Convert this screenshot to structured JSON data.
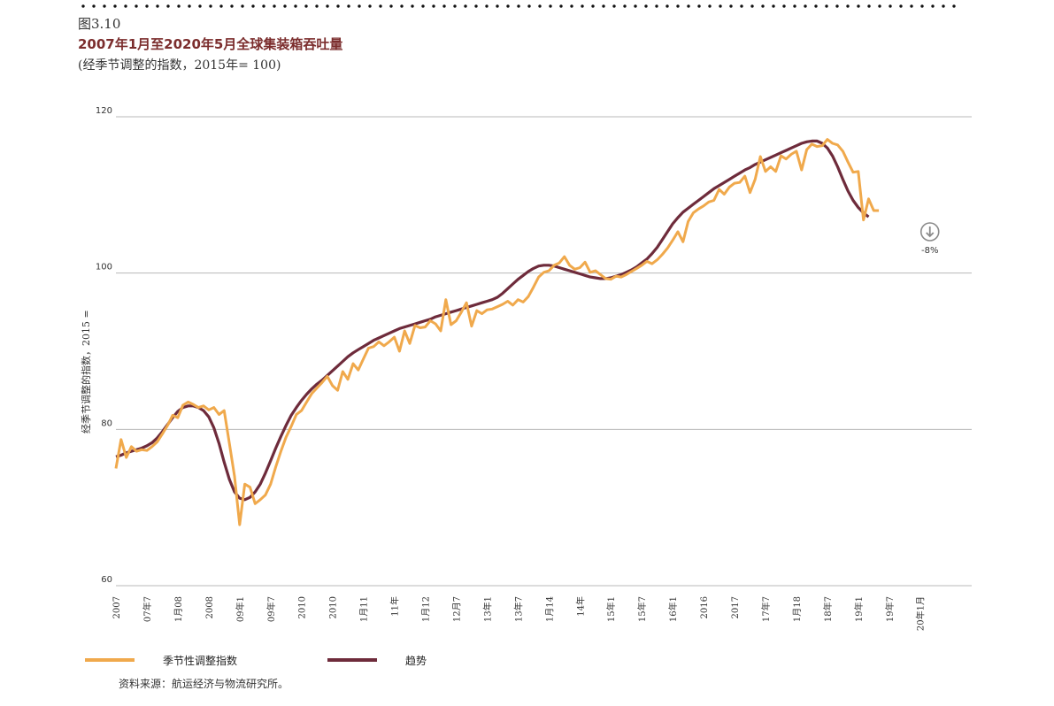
{
  "figure_label": "图3.10",
  "title": "2007年1月至2020年5月全球集装箱吞吐量",
  "subtitle": "(经季节调整的指数，2015年= 100)",
  "source": "资料来源：航运经济与物流研究所。",
  "colors": {
    "sa": "#f0a94c",
    "trend": "#6e2b3b",
    "grid": "#b8b8b8",
    "marker": "#8a8a8a"
  },
  "chart_data": {
    "type": "line",
    "ylabel": "经季节调整的指数，2015 =",
    "ylim": [
      60,
      120
    ],
    "yticks": [
      60,
      80,
      100,
      120
    ],
    "xlim": [
      0,
      166
    ],
    "x_start": "2007-01",
    "x_tick_labels": [
      {
        "label": "2007",
        "x": 0
      },
      {
        "label": "07年7",
        "x": 6
      },
      {
        "label": "1月08",
        "x": 12
      },
      {
        "label": "2008",
        "x": 18
      },
      {
        "label": "09年1",
        "x": 24
      },
      {
        "label": "09年7",
        "x": 30
      },
      {
        "label": "2010",
        "x": 36
      },
      {
        "label": "2010",
        "x": 42
      },
      {
        "label": "1月11",
        "x": 48
      },
      {
        "label": "11年",
        "x": 54
      },
      {
        "label": "1月12",
        "x": 60
      },
      {
        "label": "12月7",
        "x": 66
      },
      {
        "label": "13年1",
        "x": 72
      },
      {
        "label": "13年7",
        "x": 78
      },
      {
        "label": "1月14",
        "x": 84
      },
      {
        "label": "14年",
        "x": 90
      },
      {
        "label": "15年1",
        "x": 96
      },
      {
        "label": "15年7",
        "x": 102
      },
      {
        "label": "16年1",
        "x": 108
      },
      {
        "label": "2016",
        "x": 114
      },
      {
        "label": "2017",
        "x": 120
      },
      {
        "label": "17年7",
        "x": 126
      },
      {
        "label": "1月18",
        "x": 132
      },
      {
        "label": "18年7",
        "x": 138
      },
      {
        "label": "19年1",
        "x": 144
      },
      {
        "label": "19年7",
        "x": 150
      },
      {
        "label": "20年1月",
        "x": 156
      }
    ],
    "series": [
      {
        "name": "季节性调整指数",
        "color": "#f0a94c",
        "values": [
          75.0,
          78.7,
          76.4,
          77.8,
          77.2,
          77.4,
          77.3,
          77.8,
          78.4,
          79.4,
          80.5,
          81.8,
          81.5,
          83.1,
          83.5,
          83.2,
          82.8,
          83.0,
          82.5,
          82.8,
          81.9,
          82.4,
          78.2,
          74.0,
          67.8,
          73.0,
          72.6,
          70.5,
          71.0,
          71.6,
          73.0,
          75.2,
          77.2,
          79.0,
          80.4,
          81.9,
          82.4,
          83.5,
          84.6,
          85.3,
          86.0,
          86.8,
          85.6,
          85.0,
          87.4,
          86.4,
          88.4,
          87.6,
          89.0,
          90.4,
          90.6,
          91.2,
          90.7,
          91.2,
          91.8,
          90.0,
          92.6,
          91.0,
          93.3,
          93.0,
          93.1,
          93.9,
          93.5,
          92.6,
          96.6,
          93.4,
          93.9,
          95.0,
          96.2,
          93.2,
          95.2,
          94.8,
          95.3,
          95.4,
          95.7,
          96.0,
          96.4,
          95.9,
          96.6,
          96.3,
          97.0,
          98.2,
          99.5,
          100.1,
          100.3,
          101.0,
          101.3,
          102.1,
          101.0,
          100.5,
          100.7,
          101.4,
          100.1,
          100.3,
          99.8,
          99.3,
          99.2,
          99.6,
          99.5,
          99.8,
          100.2,
          100.6,
          101.0,
          101.5,
          101.2,
          101.7,
          102.4,
          103.2,
          104.2,
          105.3,
          104.0,
          106.6,
          107.7,
          108.2,
          108.6,
          109.1,
          109.3,
          110.7,
          110.1,
          111.0,
          111.5,
          111.6,
          112.4,
          110.3,
          112.0,
          114.9,
          113.0,
          113.6,
          113.0,
          115.0,
          114.6,
          115.2,
          115.6,
          113.2,
          115.8,
          116.5,
          116.2,
          116.3,
          117.1,
          116.6,
          116.4,
          115.6,
          114.2,
          112.9,
          113.0,
          106.8,
          109.5,
          108.0,
          108.0
        ]
      },
      {
        "name": "趋势",
        "color": "#6e2b3b",
        "values": [
          76.5,
          76.7,
          77.0,
          77.2,
          77.4,
          77.6,
          77.9,
          78.3,
          78.9,
          79.7,
          80.6,
          81.5,
          82.3,
          82.8,
          83.0,
          83.0,
          82.8,
          82.4,
          81.6,
          80.2,
          78.2,
          75.8,
          73.6,
          72.0,
          71.2,
          71.0,
          71.3,
          72.0,
          73.0,
          74.4,
          76.0,
          77.6,
          79.1,
          80.5,
          81.8,
          82.8,
          83.7,
          84.5,
          85.2,
          85.8,
          86.3,
          86.9,
          87.5,
          88.1,
          88.7,
          89.3,
          89.8,
          90.2,
          90.6,
          91.0,
          91.4,
          91.7,
          92.0,
          92.3,
          92.6,
          92.9,
          93.1,
          93.3,
          93.5,
          93.7,
          93.9,
          94.1,
          94.4,
          94.6,
          94.8,
          95.0,
          95.2,
          95.4,
          95.6,
          95.8,
          96.0,
          96.2,
          96.4,
          96.6,
          96.9,
          97.4,
          98.0,
          98.6,
          99.2,
          99.7,
          100.2,
          100.6,
          100.9,
          101.0,
          101.0,
          100.9,
          100.7,
          100.5,
          100.3,
          100.1,
          99.9,
          99.7,
          99.5,
          99.4,
          99.3,
          99.3,
          99.4,
          99.6,
          99.8,
          100.1,
          100.4,
          100.8,
          101.3,
          101.8,
          102.5,
          103.3,
          104.3,
          105.3,
          106.3,
          107.1,
          107.8,
          108.3,
          108.8,
          109.3,
          109.8,
          110.3,
          110.8,
          111.2,
          111.6,
          112.0,
          112.4,
          112.8,
          113.2,
          113.5,
          113.9,
          114.2,
          114.5,
          114.8,
          115.1,
          115.4,
          115.7,
          116.0,
          116.3,
          116.6,
          116.8,
          116.9,
          116.9,
          116.6,
          116.0,
          115.0,
          113.6,
          112.0,
          110.5,
          109.3,
          108.4,
          107.7,
          107.2
        ]
      }
    ],
    "annotation": {
      "text": "-8%",
      "icon": "down-arrow-circle-icon",
      "x": 156,
      "y": 108
    }
  }
}
